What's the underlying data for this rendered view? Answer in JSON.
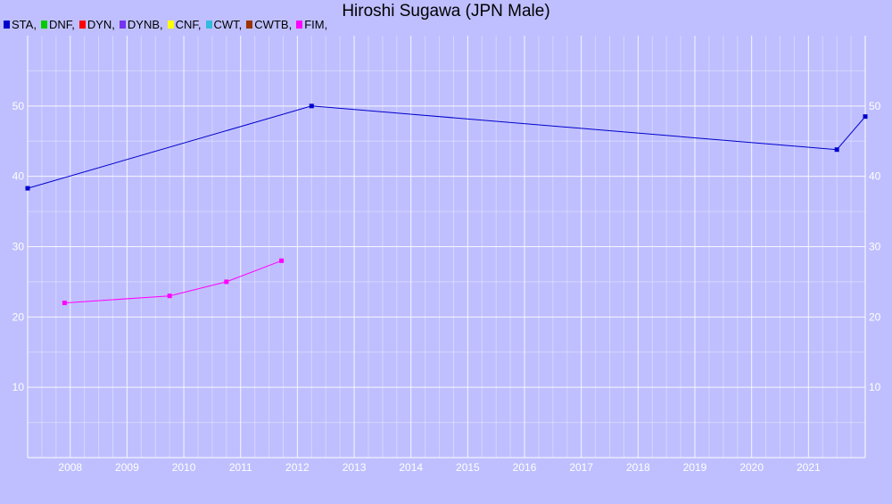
{
  "chart_data": {
    "type": "line",
    "title": "Hiroshi Sugawa (JPN Male)",
    "xlabel": "",
    "ylabel": "",
    "xlim": [
      2007.25,
      2022.0
    ],
    "ylim": [
      0,
      60
    ],
    "x_ticks": [
      "2008",
      "2009",
      "2010",
      "2011",
      "2012",
      "2013",
      "2014",
      "2015",
      "2016",
      "2017",
      "2018",
      "2019",
      "2020",
      "2021"
    ],
    "y_ticks": [
      10,
      20,
      30,
      40,
      50
    ],
    "grid": true,
    "legend_position": "top-left",
    "legend": [
      {
        "label": "STA,",
        "color": "#0000cc"
      },
      {
        "label": "DNF,",
        "color": "#00cc00"
      },
      {
        "label": "DYN,",
        "color": "#ff0000"
      },
      {
        "label": "DYNB,",
        "color": "#7733ee"
      },
      {
        "label": "CNF,",
        "color": "#ffff00"
      },
      {
        "label": "CWT,",
        "color": "#33bbdd"
      },
      {
        "label": "CWTB,",
        "color": "#993300"
      },
      {
        "label": "FIM,",
        "color": "#ff00ff"
      }
    ],
    "series": [
      {
        "name": "STA",
        "color": "#0000cc",
        "points": [
          [
            2007.25,
            38.3
          ],
          [
            2012.25,
            50.0
          ],
          [
            2021.5,
            43.8
          ],
          [
            2022.0,
            48.5
          ]
        ]
      },
      {
        "name": "FIM",
        "color": "#ff00ff",
        "points": [
          [
            2007.9,
            22.0
          ],
          [
            2009.75,
            23.0
          ],
          [
            2010.75,
            25.0
          ],
          [
            2011.72,
            28.0
          ]
        ]
      }
    ]
  }
}
